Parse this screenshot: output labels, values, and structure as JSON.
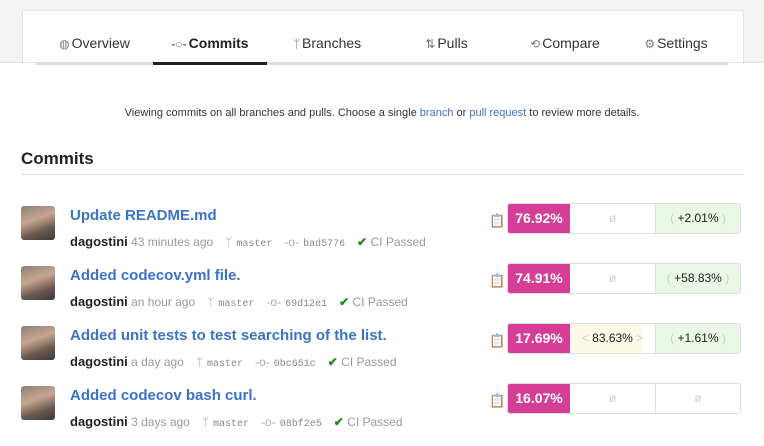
{
  "tabs": [
    {
      "label": "Overview",
      "icon": "dashboard-icon",
      "glyph": "◍"
    },
    {
      "label": "Commits",
      "icon": "commit-icon",
      "glyph": "-○-"
    },
    {
      "label": "Branches",
      "icon": "branch-icon",
      "glyph": "ᛘ"
    },
    {
      "label": "Pulls",
      "icon": "pull-request-icon",
      "glyph": "⇅"
    },
    {
      "label": "Compare",
      "icon": "compare-icon",
      "glyph": "⟲"
    },
    {
      "label": "Settings",
      "icon": "gears-icon",
      "glyph": "⚙"
    }
  ],
  "active_tab": "Commits",
  "info": {
    "before": "Viewing commits on all branches and pulls. Choose a single ",
    "branch": "branch",
    "or": " or ",
    "pull": "pull request",
    "after": " to review more details."
  },
  "heading": "Commits",
  "colors": {
    "coverage": "#d63d96",
    "link": "#3b73c8",
    "positive": "#eaf7e6",
    "ci_passed": "#1f8a1f"
  },
  "commits": [
    {
      "title": "Update README.md",
      "author": "dagostini",
      "time": "43 minutes ago",
      "branch": "master",
      "sha": "bad5776",
      "ci": "CI Passed",
      "coverage": "76.92%",
      "diff": "ø",
      "change": "+2.01%"
    },
    {
      "title": "Added codecov.yml file.",
      "author": "dagostini",
      "time": "an hour ago",
      "branch": "master",
      "sha": "69d12e1",
      "ci": "CI Passed",
      "coverage": "74.91%",
      "diff": "ø",
      "change": "+58.83%"
    },
    {
      "title": "Added unit tests to test searching of the list.",
      "author": "dagostini",
      "time": "a day ago",
      "branch": "master",
      "sha": "0bc651c",
      "ci": "CI Passed",
      "coverage": "17.69%",
      "diff": "83.63%",
      "change": "+1.61%"
    },
    {
      "title": "Added codecov bash curl.",
      "author": "dagostini",
      "time": "3 days ago",
      "branch": "master",
      "sha": "08bf2e5",
      "ci": "CI Passed",
      "coverage": "16.07%",
      "diff": "ø",
      "change": "ø"
    }
  ]
}
